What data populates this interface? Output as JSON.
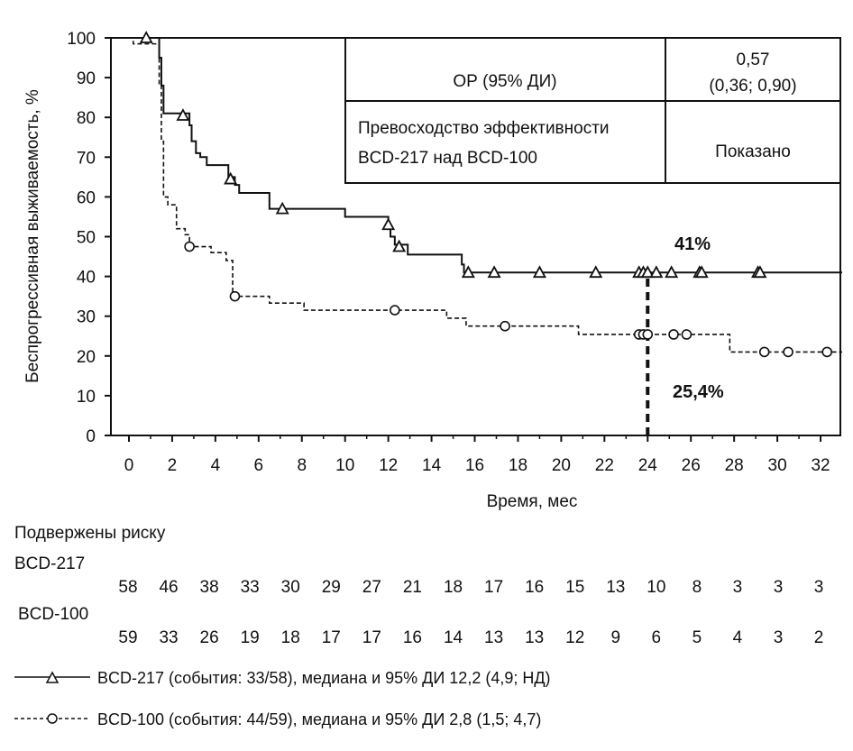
{
  "chart_data": {
    "type": "line",
    "title": "",
    "xlabel": "Время, мес",
    "ylabel": "Беспрогрессивная выживаемость, %",
    "xlim": [
      0,
      33
    ],
    "ylim": [
      0,
      100
    ],
    "xticks": [
      0,
      2,
      4,
      6,
      8,
      10,
      12,
      14,
      16,
      18,
      20,
      22,
      24,
      26,
      28,
      30,
      32
    ],
    "yticks": [
      0,
      10,
      20,
      30,
      40,
      50,
      60,
      70,
      80,
      90,
      100
    ],
    "series": [
      {
        "name": "BCD-217",
        "style": "solid",
        "marker": "triangle",
        "steps": [
          [
            0,
            100
          ],
          [
            1.4,
            95
          ],
          [
            1.5,
            88
          ],
          [
            1.6,
            81
          ],
          [
            2.8,
            78
          ],
          [
            2.9,
            74
          ],
          [
            3.1,
            71
          ],
          [
            3.3,
            70
          ],
          [
            3.6,
            68
          ],
          [
            4.6,
            65
          ],
          [
            4.9,
            63
          ],
          [
            5.1,
            61
          ],
          [
            6.5,
            57
          ],
          [
            10,
            55
          ],
          [
            12,
            53
          ],
          [
            12.1,
            50
          ],
          [
            12.3,
            48
          ],
          [
            12.9,
            45.5
          ],
          [
            15.4,
            43
          ],
          [
            15.5,
            41
          ],
          [
            33,
            41
          ]
        ],
        "censored": [
          [
            0.8,
            100
          ],
          [
            2.5,
            80.5
          ],
          [
            4.7,
            64.5
          ],
          [
            7.1,
            57
          ],
          [
            12,
            53
          ],
          [
            12.5,
            47.5
          ],
          [
            15.7,
            41
          ],
          [
            16.9,
            41
          ],
          [
            19,
            41
          ],
          [
            21.6,
            41
          ],
          [
            23.6,
            41
          ],
          [
            23.8,
            41
          ],
          [
            24,
            41
          ],
          [
            24.4,
            41
          ],
          [
            25.1,
            41
          ],
          [
            26.4,
            41
          ],
          [
            26.5,
            41
          ],
          [
            29.1,
            41
          ],
          [
            29.2,
            41
          ]
        ]
      },
      {
        "name": "BCD-100",
        "style": "dashed",
        "marker": "circle",
        "steps": [
          [
            0,
            100
          ],
          [
            0.2,
            98.5
          ],
          [
            1.4,
            88
          ],
          [
            1.5,
            74
          ],
          [
            1.6,
            60
          ],
          [
            1.8,
            58
          ],
          [
            2.2,
            52
          ],
          [
            2.6,
            50.5
          ],
          [
            2.8,
            47.5
          ],
          [
            3.8,
            46
          ],
          [
            4.5,
            44
          ],
          [
            4.8,
            35
          ],
          [
            6.5,
            33.3
          ],
          [
            8.1,
            31.5
          ],
          [
            14.7,
            29.5
          ],
          [
            15.6,
            27.5
          ],
          [
            20.8,
            25.4
          ],
          [
            27.8,
            21
          ],
          [
            33,
            21
          ]
        ],
        "censored": [
          [
            2.8,
            47.5
          ],
          [
            4.9,
            35
          ],
          [
            12.3,
            31.5
          ],
          [
            17.4,
            27.5
          ],
          [
            23.6,
            25.4
          ],
          [
            23.8,
            25.4
          ],
          [
            24,
            25.4
          ],
          [
            25.2,
            25.4
          ],
          [
            25.8,
            25.4
          ],
          [
            29.4,
            21
          ],
          [
            30.5,
            21
          ],
          [
            32.3,
            21
          ]
        ]
      }
    ],
    "annotations": [
      {
        "text": "41%",
        "x": 26,
        "y": 49
      },
      {
        "text": "25,4%",
        "x": 26,
        "y": 11
      },
      {
        "type": "vline",
        "x": 24,
        "from": 0,
        "to": 41
      }
    ],
    "table": {
      "r1c1": "ОР (95% ДИ)",
      "r1c2a": "0,57",
      "r1c2b": "(0,36; 0,90)",
      "r2c1a": "Превосходство эффективности",
      "r2c1b": "BCD-217 над BCD-100",
      "r2c2": "Показано"
    },
    "risk": {
      "title": "Подвержены риску",
      "rows": [
        {
          "name": "BCD-217",
          "values": [
            "58",
            "46",
            "38",
            "33",
            "30",
            "29",
            "27",
            "21",
            "18",
            "17",
            "16",
            "15",
            "13",
            "10",
            "8",
            "3",
            "3",
            "3"
          ]
        },
        {
          "name": "BCD-100",
          "values": [
            "59",
            "33",
            "26",
            "19",
            "18",
            "17",
            "17",
            "16",
            "14",
            "13",
            "13",
            "12",
            "9",
            "6",
            "5",
            "4",
            "3",
            "2"
          ]
        }
      ]
    },
    "legend": [
      "BCD-217 (события: 33/58), медиана и 95% ДИ 12,2 (4,9; НД)",
      "BCD-100 (события: 44/59), медиана и 95% ДИ 2,8 (1,5; 4,7)"
    ]
  }
}
